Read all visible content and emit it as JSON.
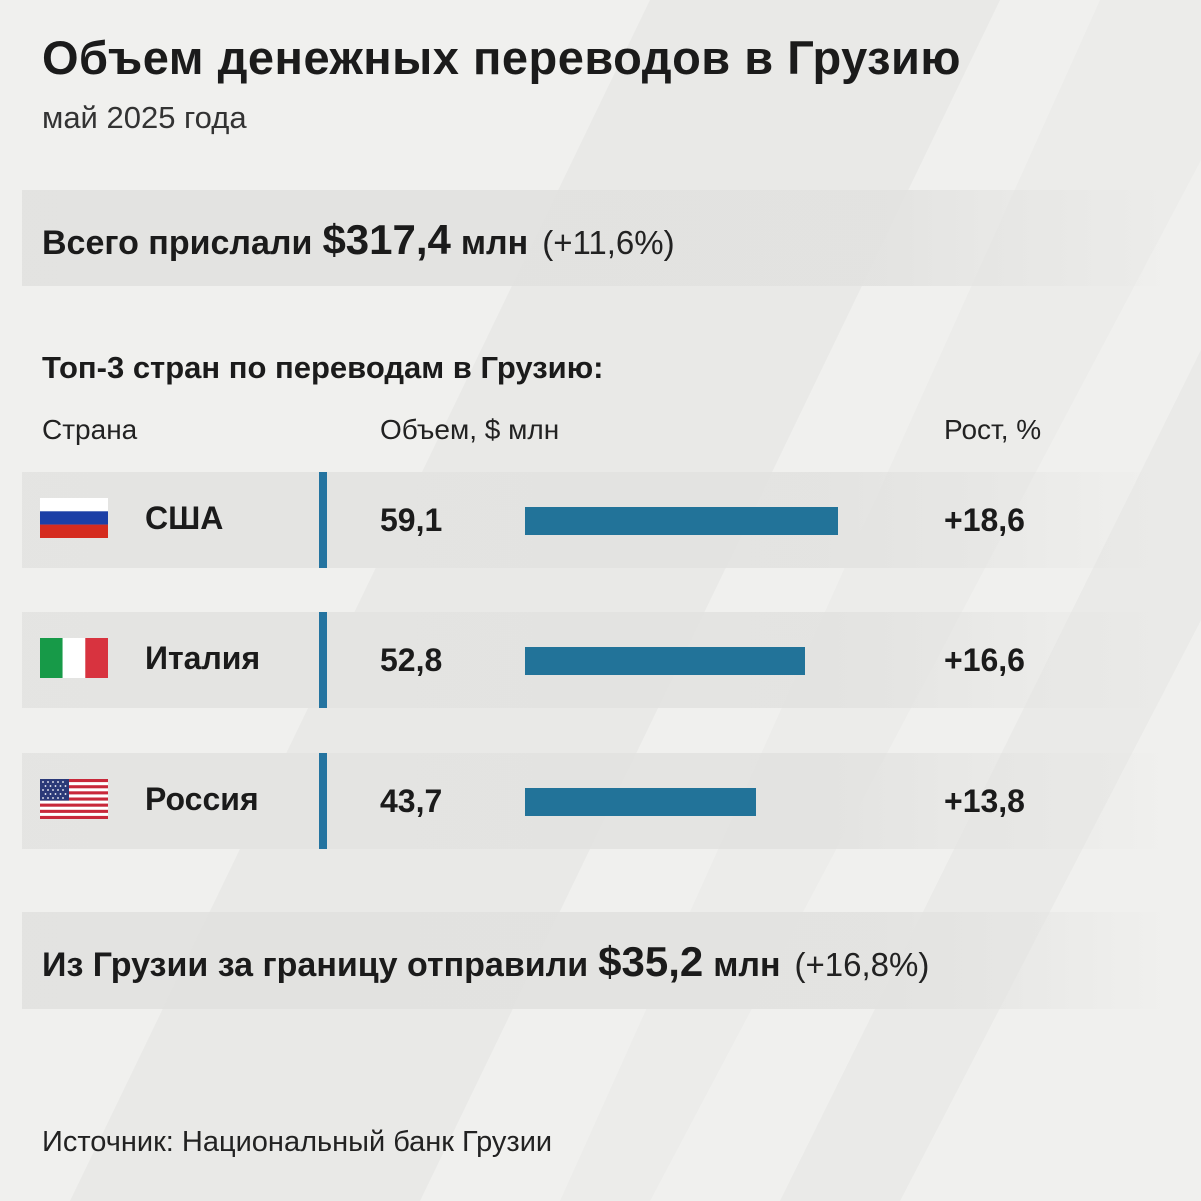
{
  "title": "Объем денежных переводов в Грузию",
  "subtitle": "май 2025 года",
  "total": {
    "prefix": "Всего прислали",
    "amount": "$317,4",
    "unit": "млн",
    "change": "(+11,6%)"
  },
  "section_title": "Топ-3 стран по переводам в Грузию:",
  "columns": {
    "country": "Страна",
    "volume": "Объем, $ млн",
    "growth": "Рост, %"
  },
  "sent": {
    "prefix": "Из Грузии за границу отправили",
    "amount": "$35,2",
    "unit": "млн",
    "change": "(+16,8%)"
  },
  "source": "Источник: Национальный банк Грузии",
  "colors": {
    "bar": "#227399",
    "separator": "#2474a0",
    "background": "#f0f0ee"
  },
  "chart_data": {
    "type": "bar",
    "title": "Топ-3 стран по переводам в Грузию:",
    "categories": [
      "США",
      "Италия",
      "Россия"
    ],
    "series": [
      {
        "name": "Объем, $ млн",
        "values": [
          59.1,
          52.8,
          43.7
        ]
      },
      {
        "name": "Рост, %",
        "values": [
          18.6,
          16.6,
          13.8
        ]
      }
    ],
    "rows": [
      {
        "country": "США",
        "flag": "russia-flag-icon",
        "value": 59.1,
        "value_label": "59,1",
        "growth_label": "+18,6"
      },
      {
        "country": "Италия",
        "flag": "italy-flag-icon",
        "value": 52.8,
        "value_label": "52,8",
        "growth_label": "+16,6"
      },
      {
        "country": "Россия",
        "flag": "usa-flag-icon",
        "value": 43.7,
        "value_label": "43,7",
        "growth_label": "+13,8"
      }
    ],
    "xlim": [
      0,
      59.1
    ]
  }
}
